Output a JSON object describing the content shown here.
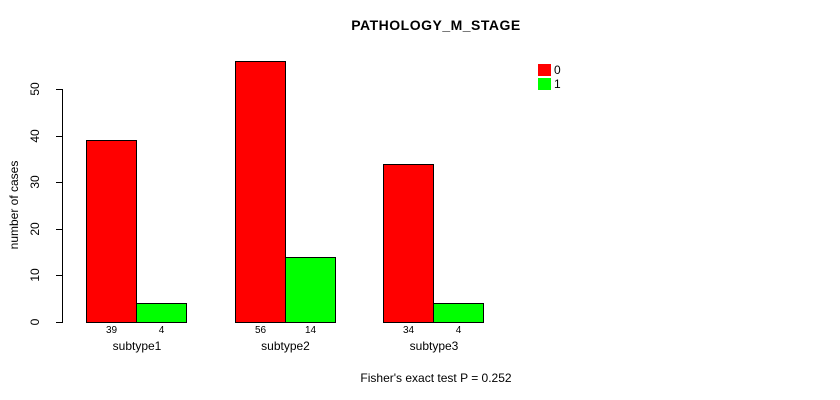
{
  "chart_data": {
    "type": "bar",
    "title": "PATHOLOGY_M_STAGE",
    "categories": [
      "subtype1",
      "subtype2",
      "subtype3"
    ],
    "series": [
      {
        "name": "0",
        "color": "#ff0000",
        "values": [
          39,
          56,
          34
        ]
      },
      {
        "name": "1",
        "color": "#00ff00",
        "values": [
          4,
          14,
          4
        ]
      }
    ],
    "bar_count_labels": [
      [
        "39",
        "4"
      ],
      [
        "56",
        "14"
      ],
      [
        "34",
        "4"
      ]
    ],
    "xlabel": "",
    "ylabel": "number of cases",
    "ylim": [
      0,
      56
    ],
    "yticks": [
      0,
      10,
      20,
      30,
      40,
      50
    ],
    "grid": false,
    "grouped": true,
    "legend_position": "top-right",
    "legend_items": [
      {
        "label": "0",
        "color": "#ff0000"
      },
      {
        "label": "1",
        "color": "#00ff00"
      }
    ],
    "annotation": "Fisher's exact test P = 0.252",
    "bar_border_color": "#000000",
    "background_color": "#ffffff"
  }
}
